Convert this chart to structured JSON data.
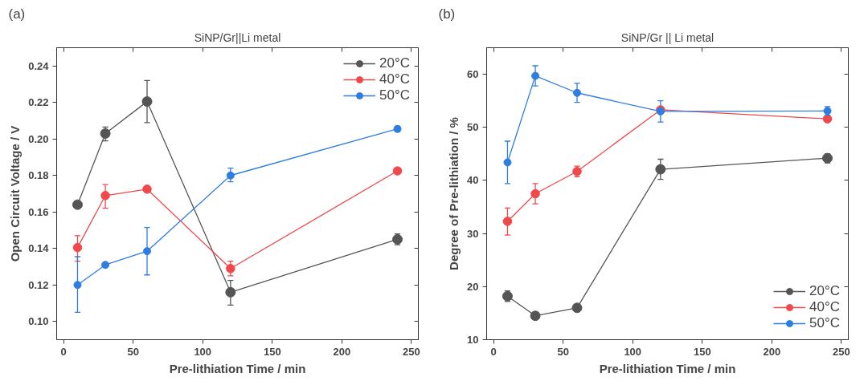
{
  "chart_data": [
    {
      "type": "line",
      "title": "SiNP/Gr||Li metal",
      "xlabel": "Pre-lithiation Time / min",
      "ylabel": "Open Circuit Voltage / V",
      "annotations": [
        "(a)"
      ],
      "x": [
        10,
        30,
        60,
        120,
        240
      ],
      "xlim": [
        -5,
        255
      ],
      "xticks": [
        0,
        50,
        100,
        150,
        200,
        250
      ],
      "ylim": [
        0.09,
        0.25
      ],
      "yticks": [
        {
          "value": 0.1,
          "label": "0.10"
        },
        {
          "value": 0.12,
          "label": "0.12"
        },
        {
          "value": 0.14,
          "label": "0.14"
        },
        {
          "value": 0.16,
          "label": "0.16"
        },
        {
          "value": 0.18,
          "label": "0.18"
        },
        {
          "value": 0.2,
          "label": "0.20"
        },
        {
          "value": 0.22,
          "label": "0.22"
        },
        {
          "value": 0.24,
          "label": "0.24"
        }
      ],
      "grid": false,
      "legend": "top right",
      "marker": "circle",
      "line_style": "solid",
      "series": [
        {
          "name": "20°C",
          "color": "#555555",
          "values": [
            0.164,
            0.203,
            0.2205,
            0.116,
            0.145
          ],
          "errors": [
            null,
            [
              0.199,
              0.2065
            ],
            [
              0.209,
              0.232
            ],
            [
              0.109,
              0.1225
            ],
            [
              0.142,
              0.148
            ]
          ]
        },
        {
          "name": "40°C",
          "color": "#f0484b",
          "values": [
            0.1405,
            0.169,
            0.1725,
            0.129,
            0.1825
          ],
          "errors": [
            [
              0.133,
              0.147
            ],
            [
              0.162,
              0.175
            ],
            null,
            [
              0.125,
              0.133
            ],
            null
          ]
        },
        {
          "name": "50°C",
          "color": "#2f7de1",
          "values": [
            0.12,
            0.131,
            0.1385,
            0.18,
            0.2055
          ],
          "errors": [
            [
              0.105,
              0.1355
            ],
            null,
            [
              0.1255,
              0.1515
            ],
            [
              0.1765,
              0.184
            ],
            [
              0.204,
              0.207
            ]
          ]
        }
      ]
    },
    {
      "type": "line",
      "title": "SiNP/Gr || Li metal",
      "xlabel": "Pre-lithiation Time / min",
      "ylabel": "Degree of Pre-lithiation / %",
      "annotations": [
        "(b)"
      ],
      "x": [
        10,
        30,
        60,
        120,
        240
      ],
      "xlim": [
        -5,
        255
      ],
      "xticks": [
        0,
        50,
        100,
        150,
        200,
        250
      ],
      "ylim": [
        10,
        65
      ],
      "yticks": [
        10,
        20,
        30,
        40,
        50,
        60
      ],
      "grid": false,
      "legend": "bottom right",
      "marker": "circle",
      "line_style": "solid",
      "series": [
        {
          "name": "20°C",
          "color": "#555555",
          "values": [
            18.2,
            14.5,
            16.0,
            42.1,
            44.2
          ],
          "errors": [
            [
              17.2,
              19.2
            ],
            null,
            null,
            [
              40.2,
              44.0
            ],
            [
              43.3,
              45.0
            ]
          ]
        },
        {
          "name": "40°C",
          "color": "#f0484b",
          "values": [
            32.3,
            37.5,
            41.7,
            53.3,
            51.6
          ],
          "errors": [
            [
              29.7,
              34.8
            ],
            [
              35.6,
              39.4
            ],
            [
              40.7,
              42.7
            ],
            null,
            null
          ]
        },
        {
          "name": "50°C",
          "color": "#2f7de1",
          "values": [
            43.4,
            59.7,
            56.5,
            53.0,
            53.1
          ],
          "errors": [
            [
              39.4,
              47.4
            ],
            [
              57.8,
              61.6
            ],
            [
              54.7,
              58.3
            ],
            [
              51.0,
              55.0
            ],
            [
              52.3,
              53.9
            ]
          ]
        }
      ]
    }
  ]
}
